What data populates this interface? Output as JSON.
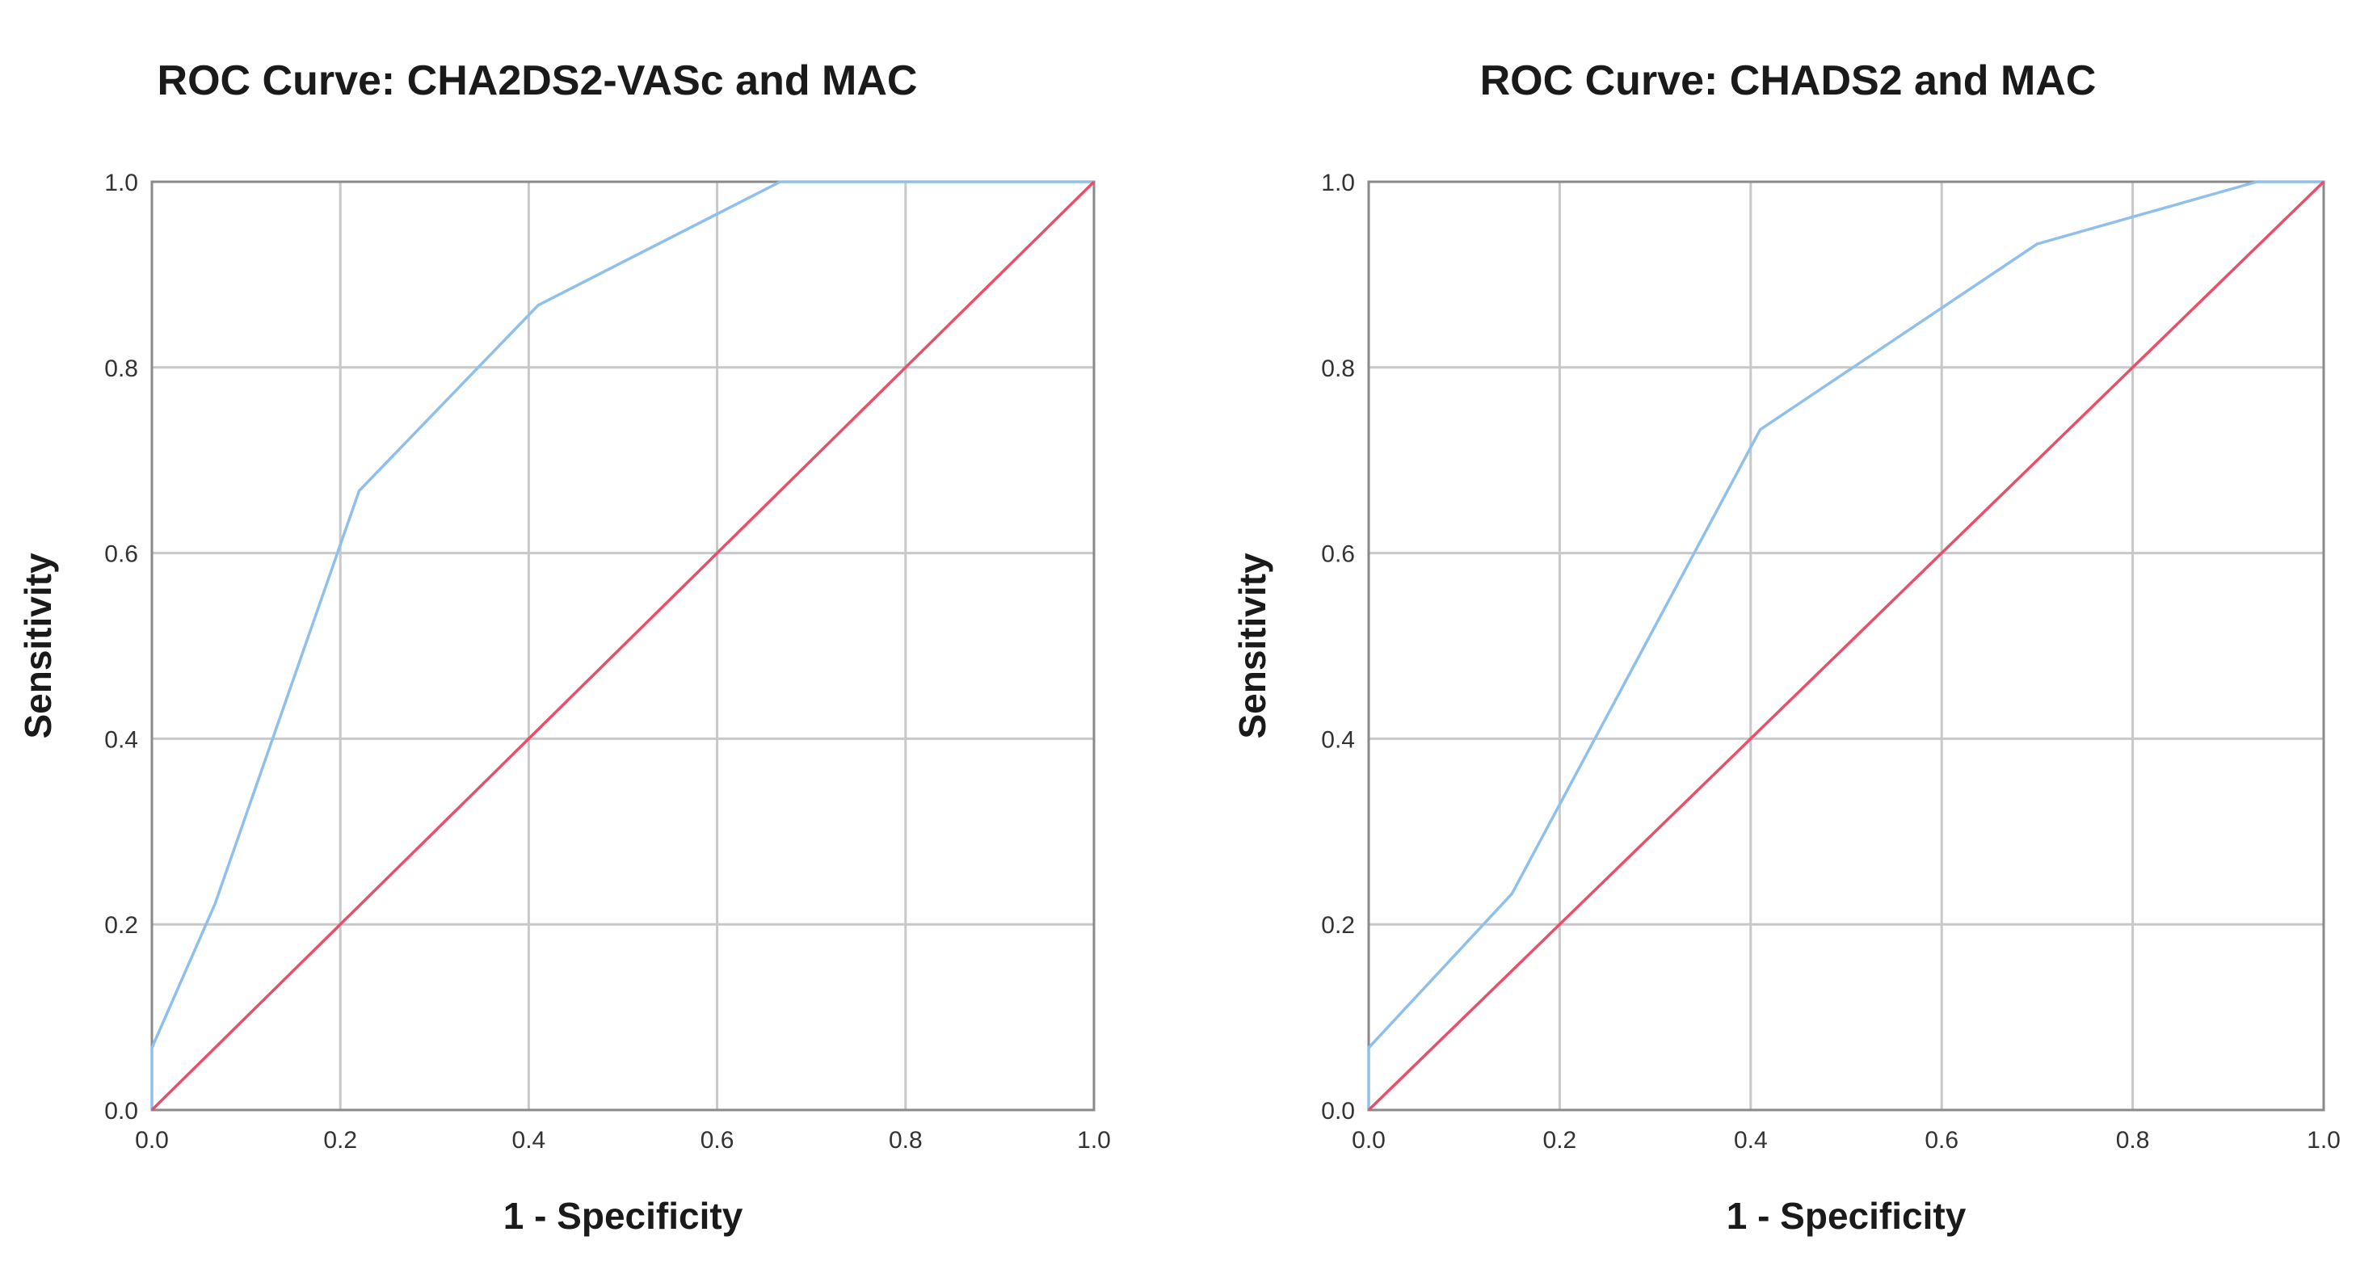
{
  "colors": {
    "roc_curve": "#8fc0ec",
    "reference_line": "#e8506a",
    "grid": "#c8c8c8",
    "frame": "#8a8a8a"
  },
  "chart_data": [
    {
      "type": "line",
      "title": "ROC Curve: CHA2DS2-VASc and MAC",
      "xlabel": "1 - Specificity",
      "ylabel": "Sensitivity",
      "xlim": [
        0,
        1
      ],
      "ylim": [
        0,
        1
      ],
      "x_ticks": [
        "0.0",
        "0.2",
        "0.4",
        "0.6",
        "0.8",
        "1.0"
      ],
      "y_ticks": [
        "0.0",
        "0.2",
        "0.4",
        "0.6",
        "0.8",
        "1.0"
      ],
      "grid": true,
      "series": [
        {
          "role": "roc_curve",
          "x": [
            0.0,
            0.0,
            0.067,
            0.22,
            0.41,
            0.667,
            1.0
          ],
          "y": [
            0.0,
            0.067,
            0.222,
            0.667,
            0.867,
            1.0,
            1.0
          ]
        },
        {
          "role": "reference_line",
          "x": [
            0.0,
            1.0
          ],
          "y": [
            0.0,
            1.0
          ]
        }
      ]
    },
    {
      "type": "line",
      "title": "ROC Curve: CHADS2 and MAC",
      "xlabel": "1 - Specificity",
      "ylabel": "Sensitivity",
      "xlim": [
        0,
        1
      ],
      "ylim": [
        0,
        1
      ],
      "x_ticks": [
        "0.0",
        "0.2",
        "0.4",
        "0.6",
        "0.8",
        "1.0"
      ],
      "y_ticks": [
        "0.0",
        "0.2",
        "0.4",
        "0.6",
        "0.8",
        "1.0"
      ],
      "grid": true,
      "series": [
        {
          "role": "roc_curve",
          "x": [
            0.0,
            0.0,
            0.15,
            0.41,
            0.7,
            0.93,
            1.0
          ],
          "y": [
            0.0,
            0.067,
            0.233,
            0.733,
            0.933,
            1.0,
            1.0
          ]
        },
        {
          "role": "reference_line",
          "x": [
            0.0,
            1.0
          ],
          "y": [
            0.0,
            1.0
          ]
        }
      ]
    }
  ]
}
